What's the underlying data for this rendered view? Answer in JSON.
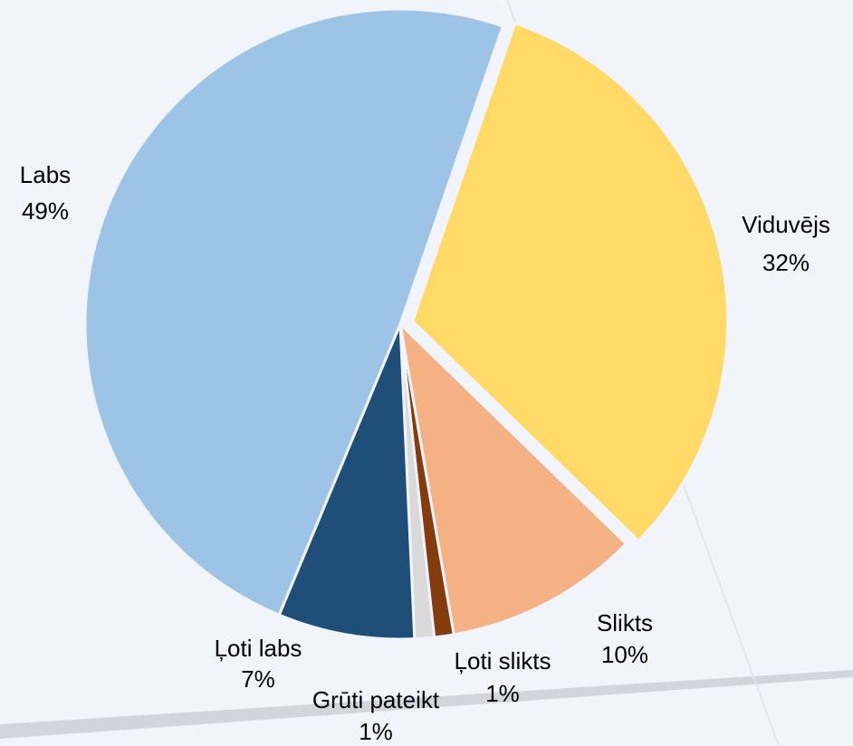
{
  "chart_data": {
    "type": "pie",
    "categories": [
      "Viduvējs",
      "Slikts",
      "Ļoti slikts",
      "Grūti pateikt",
      "Ļoti labs",
      "Labs"
    ],
    "values": [
      32,
      10,
      1,
      1,
      7,
      49
    ],
    "value_labels": [
      "32%",
      "10%",
      "1%",
      "1%",
      "7%",
      "49%"
    ],
    "colors": [
      "#ffd966",
      "#f4b183",
      "#843c0c",
      "#d9d9d9",
      "#1f4e79",
      "#9dc3e6"
    ]
  }
}
